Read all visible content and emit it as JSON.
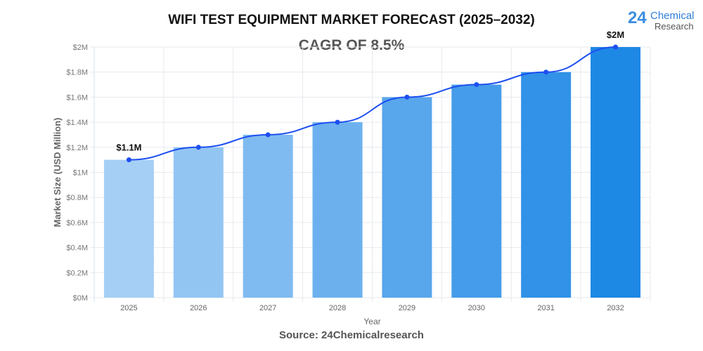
{
  "title": "WIFI TEST EQUIPMENT MARKET FORECAST (2025–2032)",
  "subtitle": "CAGR OF 8.5%",
  "source": "Source: 24Chemicalresearch",
  "logo": {
    "number": "24",
    "line1": "Chemical",
    "line2": "Research"
  },
  "chart_data": {
    "type": "bar",
    "categories": [
      "2025",
      "2026",
      "2027",
      "2028",
      "2029",
      "2030",
      "2031",
      "2032"
    ],
    "values": [
      1.1,
      1.2,
      1.3,
      1.4,
      1.6,
      1.7,
      1.8,
      2.0
    ],
    "line_overlay": true,
    "xlabel": "Year",
    "ylabel": "Market Size (USD Million)",
    "ylim": [
      0,
      2
    ],
    "yticks": [
      "$0M",
      "$0.2M",
      "$0.4M",
      "$0.6M",
      "$0.8M",
      "$1M",
      "$1.2M",
      "$1.4M",
      "$1.6M",
      "$1.8M",
      "$2M"
    ],
    "data_labels": [
      {
        "index": 0,
        "text": "$1.1M"
      },
      {
        "index": 7,
        "text": "$2M"
      }
    ],
    "grid": true,
    "colors": {
      "bar_start": "#a6cff5",
      "bar_end": "#1e88e5",
      "line": "#1d4ff0"
    }
  }
}
